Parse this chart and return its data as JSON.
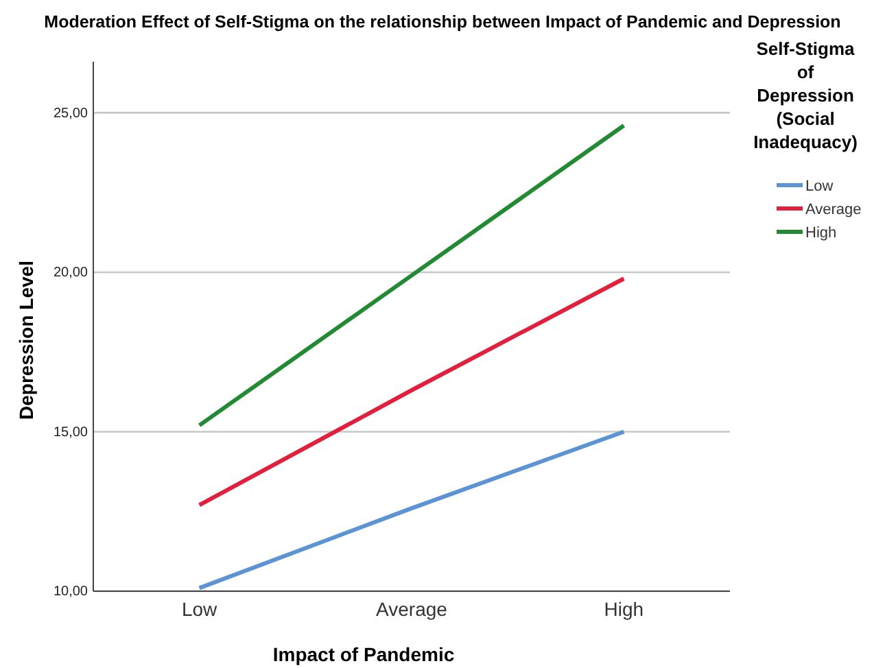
{
  "chart_data": {
    "type": "line",
    "title": "Moderation Effect of Self-Stigma on the relationship between Impact of Pandemic and Depression",
    "xlabel": "Impact of Pandemic",
    "ylabel": "Depression Level",
    "legend_title": "Self-Stigma of Depression (Social Inadequacy)",
    "categories": [
      "Low",
      "Average",
      "High"
    ],
    "series": [
      {
        "name": "Low",
        "color": "#5b93d3",
        "values": [
          10.1,
          12.6,
          15.0
        ]
      },
      {
        "name": "Average",
        "color": "#e0203c",
        "values": [
          12.7,
          16.3,
          19.8
        ]
      },
      {
        "name": "High",
        "color": "#218a32",
        "values": [
          15.2,
          19.9,
          24.6
        ]
      }
    ],
    "ylim": [
      10,
      26.6
    ],
    "yticks": [
      {
        "value": 10,
        "label": "10,00"
      },
      {
        "value": 15,
        "label": "15,00"
      },
      {
        "value": 20,
        "label": "20,00"
      },
      {
        "value": 25,
        "label": "25,00"
      }
    ],
    "grid": "y",
    "legend": "right",
    "marker": "none",
    "line_style": "solid"
  }
}
